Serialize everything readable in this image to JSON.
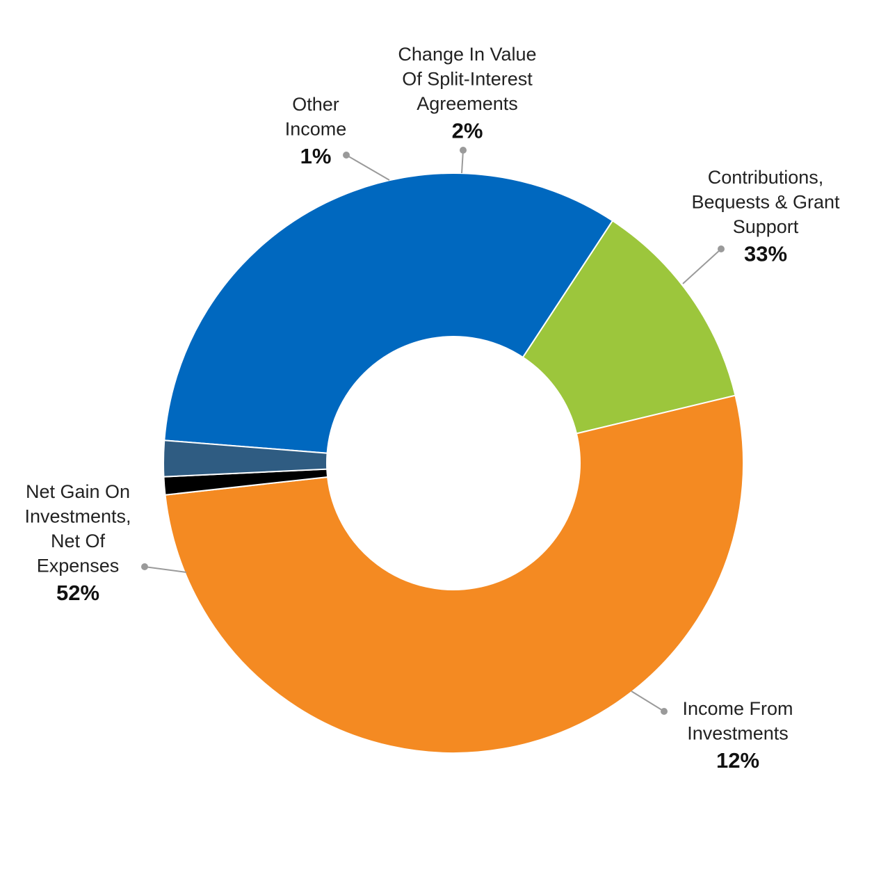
{
  "chart_data": {
    "type": "pie",
    "donut": true,
    "legend": "none",
    "slices": [
      {
        "label_lines": [
          "Contributions,",
          "Bequests & Grant",
          "Support"
        ],
        "value_label": "33%",
        "value": 33,
        "color": "#0068BF"
      },
      {
        "label_lines": [
          "Income From",
          "Investments"
        ],
        "value_label": "12%",
        "value": 12,
        "color": "#9CC63C"
      },
      {
        "label_lines": [
          "Net Gain On",
          "Investments,",
          "Net Of",
          "Expenses"
        ],
        "value_label": "52%",
        "value": 52,
        "color": "#F48A22"
      },
      {
        "label_lines": [
          "Other",
          "Income"
        ],
        "value_label": "1%",
        "value": 1,
        "color": "#000000"
      },
      {
        "label_lines": [
          "Change In Value",
          "Of Split-Interest",
          "Agreements"
        ],
        "value_label": "2%",
        "value": 2,
        "color": "#2F5C82"
      }
    ]
  }
}
